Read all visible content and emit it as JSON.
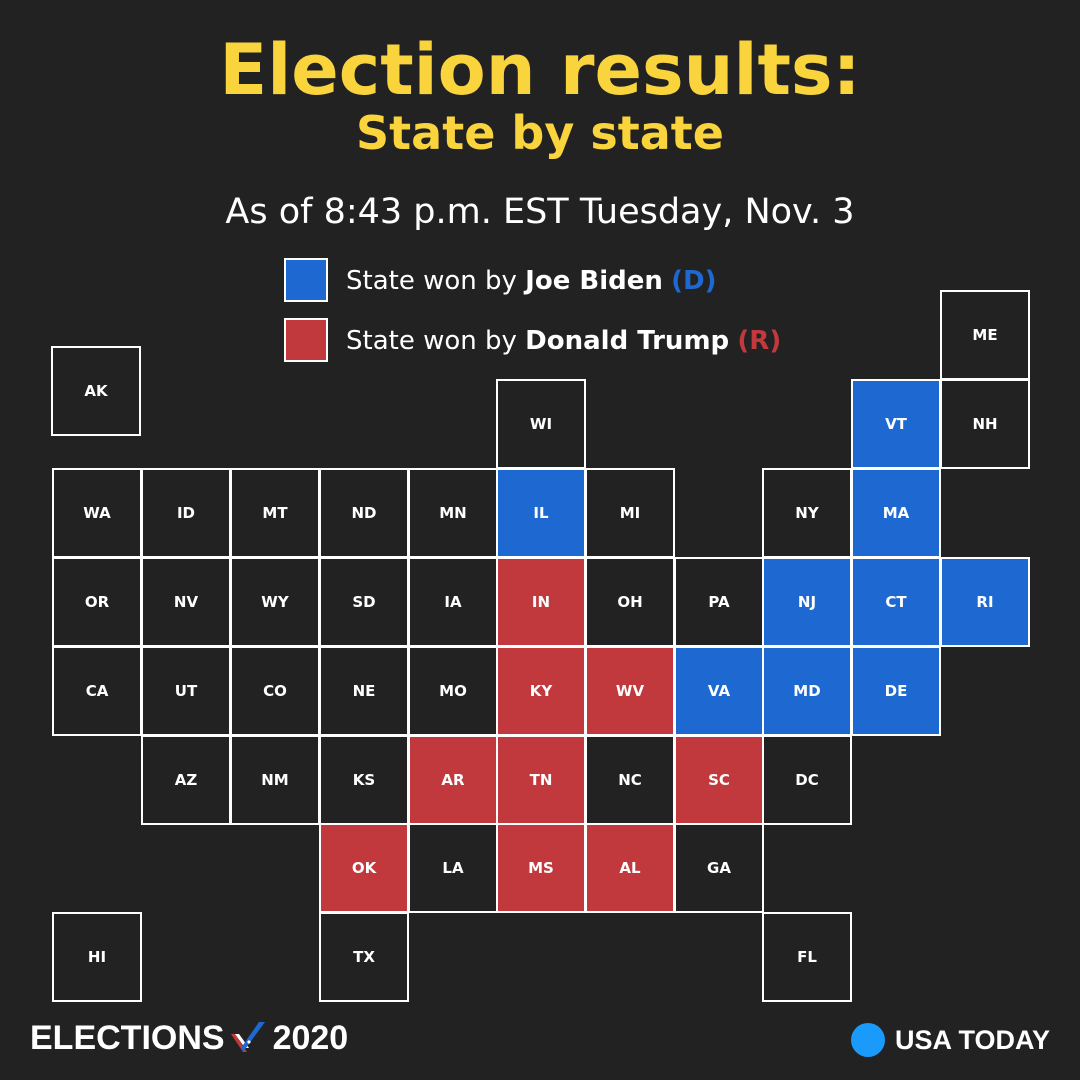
{
  "header": {
    "title": "Election results:",
    "subtitle": "State by state",
    "as_of": "As of 8:43 p.m. EST Tuesday, Nov. 3"
  },
  "legend": {
    "biden": {
      "prefix": "State won by ",
      "name": "Joe Biden",
      "party": "(D)",
      "color": "#1e68d1"
    },
    "trump": {
      "prefix": "State won by ",
      "name": "Donald Trump",
      "party": "(R)",
      "color": "#c1393d"
    }
  },
  "colors": {
    "D": "#1e68d1",
    "R": "#c1393d",
    "none": "#222222",
    "accent": "#f9d43c"
  },
  "states": [
    {
      "abbr": "AK",
      "winner": null
    },
    {
      "abbr": "ME",
      "winner": null
    },
    {
      "abbr": "WI",
      "winner": null
    },
    {
      "abbr": "VT",
      "winner": "D"
    },
    {
      "abbr": "NH",
      "winner": null
    },
    {
      "abbr": "WA",
      "winner": null
    },
    {
      "abbr": "ID",
      "winner": null
    },
    {
      "abbr": "MT",
      "winner": null
    },
    {
      "abbr": "ND",
      "winner": null
    },
    {
      "abbr": "MN",
      "winner": null
    },
    {
      "abbr": "IL",
      "winner": "D"
    },
    {
      "abbr": "MI",
      "winner": null
    },
    {
      "abbr": "NY",
      "winner": null
    },
    {
      "abbr": "MA",
      "winner": "D"
    },
    {
      "abbr": "OR",
      "winner": null
    },
    {
      "abbr": "NV",
      "winner": null
    },
    {
      "abbr": "WY",
      "winner": null
    },
    {
      "abbr": "SD",
      "winner": null
    },
    {
      "abbr": "IA",
      "winner": null
    },
    {
      "abbr": "IN",
      "winner": "R"
    },
    {
      "abbr": "OH",
      "winner": null
    },
    {
      "abbr": "PA",
      "winner": null
    },
    {
      "abbr": "NJ",
      "winner": "D"
    },
    {
      "abbr": "CT",
      "winner": "D"
    },
    {
      "abbr": "RI",
      "winner": "D"
    },
    {
      "abbr": "CA",
      "winner": null
    },
    {
      "abbr": "UT",
      "winner": null
    },
    {
      "abbr": "CO",
      "winner": null
    },
    {
      "abbr": "NE",
      "winner": null
    },
    {
      "abbr": "MO",
      "winner": null
    },
    {
      "abbr": "KY",
      "winner": "R"
    },
    {
      "abbr": "WV",
      "winner": "R"
    },
    {
      "abbr": "VA",
      "winner": "D"
    },
    {
      "abbr": "MD",
      "winner": "D"
    },
    {
      "abbr": "DE",
      "winner": "D"
    },
    {
      "abbr": "AZ",
      "winner": null
    },
    {
      "abbr": "NM",
      "winner": null
    },
    {
      "abbr": "KS",
      "winner": null
    },
    {
      "abbr": "AR",
      "winner": "R"
    },
    {
      "abbr": "TN",
      "winner": "R"
    },
    {
      "abbr": "NC",
      "winner": null
    },
    {
      "abbr": "SC",
      "winner": "R"
    },
    {
      "abbr": "DC",
      "winner": null
    },
    {
      "abbr": "OK",
      "winner": "R"
    },
    {
      "abbr": "LA",
      "winner": null
    },
    {
      "abbr": "MS",
      "winner": "R"
    },
    {
      "abbr": "AL",
      "winner": "R"
    },
    {
      "abbr": "GA",
      "winner": null
    },
    {
      "abbr": "HI",
      "winner": null
    },
    {
      "abbr": "TX",
      "winner": null
    },
    {
      "abbr": "FL",
      "winner": null
    }
  ],
  "footer": {
    "left_brand": "ELECTIONS",
    "left_year": "2020",
    "right_brand": "USA TODAY",
    "right_dot_color": "#1a9bfc"
  }
}
